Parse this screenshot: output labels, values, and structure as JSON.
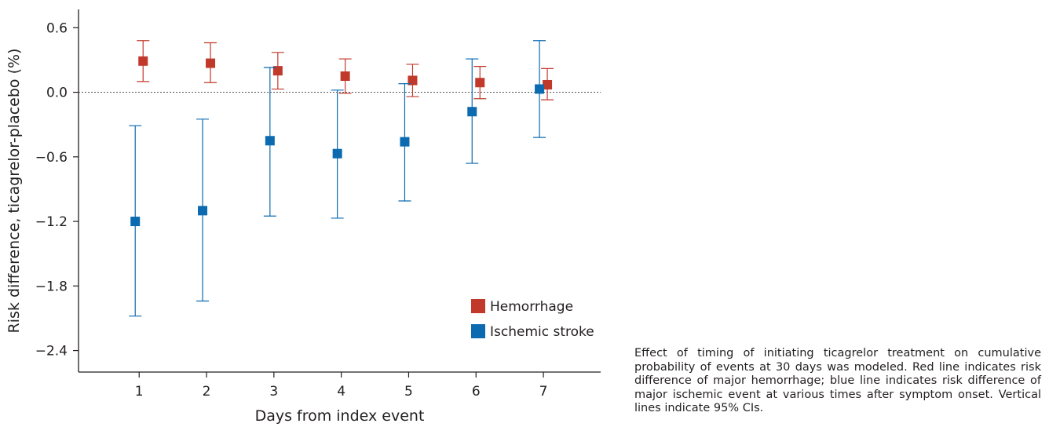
{
  "chart_data": {
    "type": "scatter",
    "xlabel": "Days from index event",
    "ylabel": "Risk difference, ticagrelor-placebo (%)",
    "x_ticks": [
      1,
      2,
      3,
      4,
      5,
      6,
      7
    ],
    "y_ticks": [
      0.6,
      0.0,
      -0.6,
      -1.2,
      -1.8,
      -2.4
    ],
    "y_tick_labels": [
      "0.6",
      "0.0",
      "−0.6",
      "−1.2",
      "−1.8",
      "−2.4"
    ],
    "ylim": [
      -2.6,
      0.77
    ],
    "xlim": [
      0.1,
      7.85
    ],
    "reference_line": 0.0,
    "grid": false,
    "legend_position": "bottom-right",
    "series": [
      {
        "name": "Hemorrhage",
        "color": "#c0392b",
        "x": [
          1,
          2,
          3,
          4,
          5,
          6,
          7
        ],
        "values": [
          0.29,
          0.27,
          0.2,
          0.15,
          0.11,
          0.09,
          0.07
        ],
        "ci_low": [
          0.1,
          0.09,
          0.03,
          -0.01,
          -0.04,
          -0.06,
          -0.07
        ],
        "ci_high": [
          0.48,
          0.46,
          0.37,
          0.31,
          0.26,
          0.24,
          0.22
        ]
      },
      {
        "name": "Ischemic stroke",
        "color": "#0b6ab0",
        "x": [
          1,
          2,
          3,
          4,
          5,
          6,
          7
        ],
        "values": [
          -1.2,
          -1.1,
          -0.45,
          -0.57,
          -0.46,
          -0.18,
          0.03
        ],
        "ci_low": [
          -2.08,
          -1.94,
          -1.15,
          -1.17,
          -1.01,
          -0.66,
          -0.42
        ],
        "ci_high": [
          -0.31,
          -0.25,
          0.23,
          0.02,
          0.08,
          0.31,
          0.48
        ]
      }
    ]
  },
  "caption": "Effect of timing of initiating ticagrelor treatment on cumulative probability of events at 30 days was modeled. Red line indicates risk difference of major hemorrhage; blue line indicates risk difference of major ischemic event at various times after symptom onset. Vertical lines indicate 95% CIs."
}
